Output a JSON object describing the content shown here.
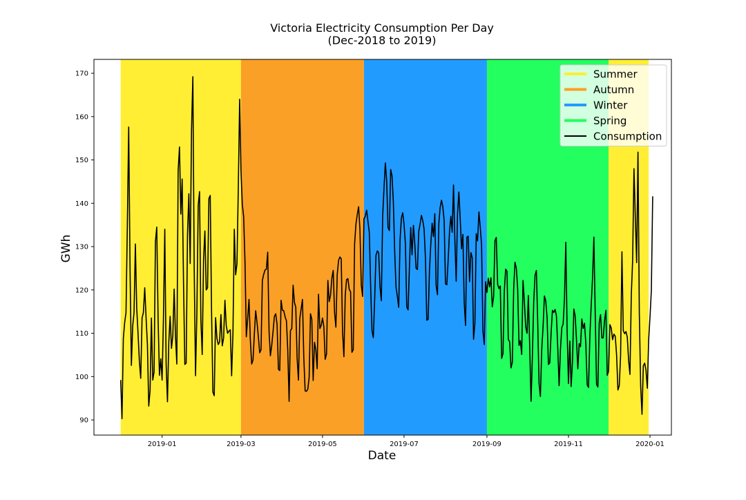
{
  "chart_data": {
    "type": "line",
    "title": "Victoria Electricity Consumption Per Day",
    "subtitle": "(Dec-2018 to 2019)",
    "xlabel": "Date",
    "ylabel": "GWh",
    "xlim": [
      "2018-11-11",
      "2020-01-17"
    ],
    "ylim": [
      86.5,
      173.2
    ],
    "grid": false,
    "legend_position": "top-right",
    "x_ticks": [
      "2019-01",
      "2019-03",
      "2019-05",
      "2019-07",
      "2019-09",
      "2019-11",
      "2020-01"
    ],
    "y_ticks": [
      90,
      100,
      110,
      120,
      130,
      140,
      150,
      160,
      170
    ],
    "seasons": [
      {
        "name": "Summer",
        "color": "#ffee33",
        "start": "2018-12-01",
        "end": "2019-03-01"
      },
      {
        "name": "Autumn",
        "color": "#fba026",
        "start": "2019-03-01",
        "end": "2019-06-01"
      },
      {
        "name": "Winter",
        "color": "#229bff",
        "start": "2019-06-01",
        "end": "2019-09-01"
      },
      {
        "name": "Spring",
        "color": "#22ff5e",
        "start": "2019-09-01",
        "end": "2019-12-01"
      },
      {
        "name": "Summer",
        "color": "#ffee33",
        "start": "2019-12-01",
        "end": "2019-12-31",
        "legend": false
      }
    ],
    "series": [
      {
        "name": "Consumption",
        "color": "#000000",
        "x_start": "2018-12-01",
        "x_step_days": 1,
        "values": [
          99.2,
          90.3,
          108.8,
          112.5,
          114.8,
          135.1,
          157.6,
          125.3,
          102.6,
          111.7,
          114.8,
          130.6,
          115.8,
          109.9,
          103.5,
          99.6,
          113.5,
          114.8,
          120.5,
          113.6,
          107.4,
          93.2,
          96.8,
          113.5,
          99.2,
          101.1,
          131.2,
          134.5,
          113.3,
          100.3,
          104.1,
          99.2,
          113.5,
          134.0,
          103.0,
          94.2,
          107.9,
          113.9,
          106.5,
          109.4,
          120.2,
          109.4,
          102.9,
          147.6,
          153.0,
          137.5,
          145.6,
          122.0,
          102.8,
          103.1,
          132.8,
          142.2,
          126.1,
          156.9,
          169.2,
          125.1,
          100.2,
          114.6,
          139.5,
          142.7,
          113.1,
          105.1,
          126.9,
          133.6,
          120.0,
          120.5,
          141.1,
          141.8,
          114.8,
          96.4,
          95.6,
          113.6,
          108.9,
          107.4,
          108.0,
          114.3,
          107.1,
          108.9,
          117.6,
          111.7,
          110.0,
          110.5,
          110.8,
          100.2,
          109.9,
          134.0,
          123.5,
          126.0,
          143.6,
          164.0,
          147.6,
          139.7,
          136.9,
          126.6,
          109.2,
          113.4,
          117.8,
          108.5,
          102.9,
          103.8,
          109.8,
          115.2,
          112.5,
          109.2,
          105.5,
          106.2,
          122.2,
          123.6,
          124.6,
          124.8,
          128.7,
          110.5,
          104.8,
          107.2,
          110.4,
          113.9,
          114.5,
          112.0,
          101.7,
          101.4,
          117.6,
          115.3,
          115.2,
          113.8,
          112.9,
          106.1,
          94.3,
          110.6,
          111.1,
          121.1,
          117.1,
          116.0,
          104.2,
          99.2,
          113.4,
          115.6,
          117.8,
          104.4,
          96.7,
          96.6,
          97.1,
          99.8,
          114.5,
          113.2,
          99.1,
          107.9,
          106.2,
          101.8,
          119.0,
          111.1,
          111.8,
          113.5,
          111.5,
          104.0,
          105.2,
          122.2,
          117.3,
          118.8,
          122.7,
          124.5,
          114.8,
          111.4,
          123.5,
          126.8,
          127.6,
          127.2,
          110.3,
          104.6,
          118.8,
          122.4,
          122.6,
          120.1,
          119.6,
          105.6,
          106.2,
          130.6,
          135.2,
          137.4,
          139.2,
          133.9,
          121.1,
          118.5,
          136.4,
          137.0,
          138.4,
          135.8,
          133.3,
          120.9,
          110.6,
          109.0,
          117.7,
          128.0,
          129.0,
          128.6,
          120.8,
          117.5,
          137.0,
          143.5,
          149.3,
          145.1,
          134.4,
          133.7,
          147.8,
          146.3,
          140.2,
          128.7,
          120.6,
          118.5,
          116.0,
          131.5,
          136.6,
          137.8,
          135.1,
          130.7,
          116.1,
          115.4,
          125.0,
          134.4,
          128.1,
          134.9,
          130.9,
          125.0,
          124.7,
          133.5,
          135.2,
          137.2,
          136.0,
          134.0,
          127.3,
          113.0,
          113.2,
          124.3,
          130.6,
          135.4,
          132.3,
          137.6,
          121.0,
          118.9,
          135.3,
          139.0,
          140.7,
          139.2,
          136.0,
          121.4,
          121.2,
          126.9,
          133.4,
          137.0,
          133.3,
          144.2,
          131.6,
          122.0,
          137.5,
          142.6,
          136.5,
          129.5,
          132.8,
          117.1,
          111.8,
          132.2,
          132.4,
          121.9,
          128.6,
          127.4,
          108.6,
          112.3,
          133.0,
          131.3,
          138.0,
          134.5,
          130.3,
          110.5,
          107.4,
          121.9,
          119.4,
          122.7,
          120.7,
          122.8,
          116.1,
          118.5,
          131.4,
          132.1,
          121.3,
          120.3,
          120.9,
          104.2,
          105.3,
          119.7,
          124.8,
          124.3,
          108.6,
          108.0,
          102.0,
          103.3,
          120.3,
          126.4,
          125.0,
          120.2,
          107.2,
          108.3,
          105.1,
          122.2,
          117.3,
          111.5,
          110.0,
          118.7,
          106.8,
          94.3,
          104.7,
          117.3,
          123.4,
          124.5,
          112.3,
          98.4,
          95.4,
          106.3,
          111.5,
          118.6,
          117.5,
          113.6,
          102.8,
          103.2,
          110.0,
          115.3,
          114.8,
          115.5,
          114.0,
          106.5,
          97.9,
          106.3,
          111.3,
          112.1,
          118.0,
          131.0,
          110.4,
          98.4,
          108.2,
          97.7,
          103.5,
          115.6,
          114.0,
          108.5,
          101.8,
          107.6,
          106.9,
          113.3,
          111.1,
          112.3,
          107.5,
          98.1,
          97.5,
          109.2,
          116.5,
          122.7,
          132.2,
          114.7,
          98.2,
          97.6,
          112.4,
          114.3,
          108.9,
          109.0,
          113.0,
          115.3,
          100.3,
          101.2,
          112.0,
          111.2,
          108.5,
          109.8,
          109.3,
          105.0,
          96.9,
          97.9,
          104.9,
          128.8,
          110.6,
          109.9,
          110.4,
          109.1,
          103.7,
          100.5,
          118.8,
          126.8,
          148.0,
          136.9,
          126.3,
          151.8,
          114.7,
          97.9,
          91.3,
          102.5,
          103.1,
          101.5,
          97.3,
          108.5,
          113.8,
          119.8,
          141.6
        ]
      }
    ]
  }
}
